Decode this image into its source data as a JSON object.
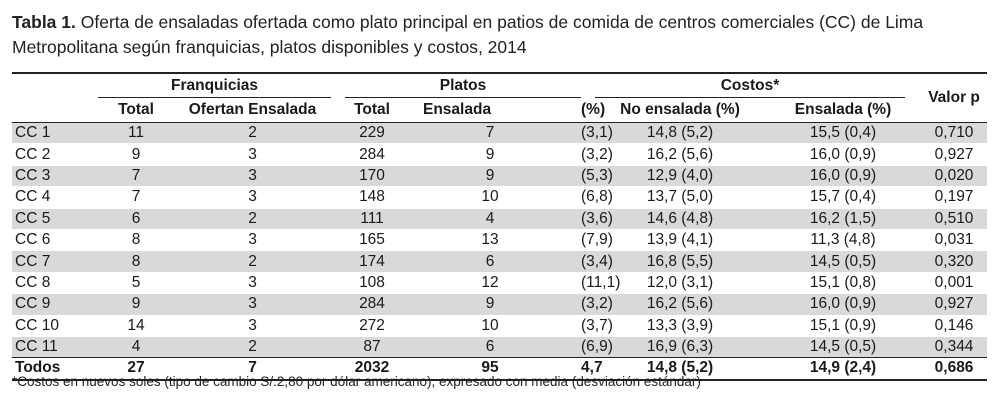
{
  "caption": {
    "label": "Tabla 1.",
    "text": " Oferta de ensaladas ofertada como plato principal en patios de comida de centros comerciales (CC) de Lima Metropolitana según franquicias, platos disponibles y costos, 2014"
  },
  "headers": {
    "franquicias": "Franquicias",
    "platos": "Platos",
    "costos": "Costos*",
    "valor_p": "Valor p",
    "total": "Total",
    "ofertan": "Ofertan Ensalada",
    "platos_total": "Total",
    "ensalada": "Ensalada",
    "pct": "(%)",
    "no_ensalada": "No ensalada (%)",
    "ensalada_pct": "Ensalada (%)"
  },
  "rows": [
    {
      "cc": "CC 1",
      "f_total": "11",
      "f_ofertan": "2",
      "p_total": "229",
      "p_ens": "7",
      "p_pct": "(3,1)",
      "c_no": "14,8 (5,2)",
      "c_ens": "15,5 (0,4)",
      "p": "0,710"
    },
    {
      "cc": "CC 2",
      "f_total": "9",
      "f_ofertan": "3",
      "p_total": "284",
      "p_ens": "9",
      "p_pct": "(3,2)",
      "c_no": "16,2 (5,6)",
      "c_ens": "16,0 (0,9)",
      "p": "0,927"
    },
    {
      "cc": "CC 3",
      "f_total": "7",
      "f_ofertan": "3",
      "p_total": "170",
      "p_ens": "9",
      "p_pct": "(5,3)",
      "c_no": "12,9 (4,0)",
      "c_ens": "16,0 (0,9)",
      "p": "0,020"
    },
    {
      "cc": "CC 4",
      "f_total": "7",
      "f_ofertan": "3",
      "p_total": "148",
      "p_ens": "10",
      "p_pct": "(6,8)",
      "c_no": "13,7 (5,0)",
      "c_ens": "15,7 (0,4)",
      "p": "0,197"
    },
    {
      "cc": "CC 5",
      "f_total": "6",
      "f_ofertan": "2",
      "p_total": "111",
      "p_ens": "4",
      "p_pct": "(3,6)",
      "c_no": "14,6 (4,8)",
      "c_ens": "16,2 (1,5)",
      "p": "0,510"
    },
    {
      "cc": "CC 6",
      "f_total": "8",
      "f_ofertan": "3",
      "p_total": "165",
      "p_ens": "13",
      "p_pct": "(7,9)",
      "c_no": "13,9 (4,1)",
      "c_ens": "11,3 (4,8)",
      "p": "0,031"
    },
    {
      "cc": "CC 7",
      "f_total": "8",
      "f_ofertan": "2",
      "p_total": "174",
      "p_ens": "6",
      "p_pct": "(3,4)",
      "c_no": "16,8 (5,5)",
      "c_ens": "14,5 (0,5)",
      "p": "0,320"
    },
    {
      "cc": "CC 8",
      "f_total": "5",
      "f_ofertan": "3",
      "p_total": "108",
      "p_ens": "12",
      "p_pct": "(11,1)",
      "c_no": "12,0 (3,1)",
      "c_ens": "15,1 (0,8)",
      "p": "0,001"
    },
    {
      "cc": "CC 9",
      "f_total": "9",
      "f_ofertan": "3",
      "p_total": "284",
      "p_ens": "9",
      "p_pct": "(3,2)",
      "c_no": "16,2 (5,6)",
      "c_ens": "16,0 (0,9)",
      "p": "0,927"
    },
    {
      "cc": "CC 10",
      "f_total": "14",
      "f_ofertan": "3",
      "p_total": "272",
      "p_ens": "10",
      "p_pct": "(3,7)",
      "c_no": "13,3 (3,9)",
      "c_ens": "15,1 (0,9)",
      "p": "0,146"
    },
    {
      "cc": "CC 11",
      "f_total": "4",
      "f_ofertan": "2",
      "p_total": "87",
      "p_ens": "6",
      "p_pct": "(6,9)",
      "c_no": "16,9 (6,3)",
      "c_ens": "14,5 (0,5)",
      "p": "0,344"
    }
  ],
  "totals": {
    "cc": "Todos",
    "f_total": "27",
    "f_ofertan": "7",
    "p_total": "2032",
    "p_ens": "95",
    "p_pct": "4,7",
    "c_no": "14,8 (5,2)",
    "c_ens": "14,9 (2,4)",
    "p": "0,686"
  },
  "footnote": "*Costos en nuevos soles (tipo de cambio S/.2,80 por dólar americano), expresado con media (desviación estándar)"
}
